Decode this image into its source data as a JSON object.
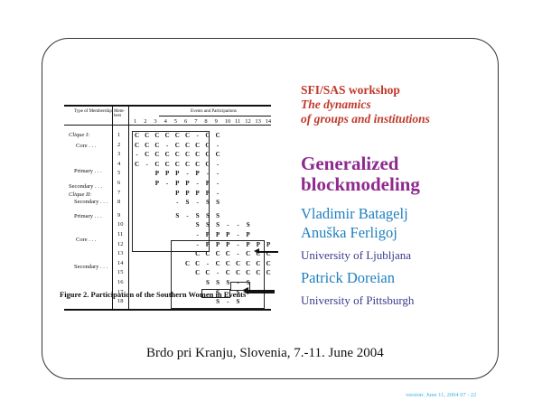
{
  "slide": {
    "workshop": "SFI/SAS workshop",
    "subtitle_line1": "The dynamics",
    "subtitle_line2": "of groups and institutions",
    "title_line1": "Generalized",
    "title_line2": "blockmodeling",
    "authors": [
      "Vladimir Batagelj",
      "Anuška Ferligoj"
    ],
    "affiliation1": "University of Ljubljana",
    "author3": "Patrick Doreian",
    "affiliation2": "University of Pittsburgh",
    "venue": "Brdo pri Kranju, Slovenia, 7.-11. June 2004",
    "version": "version: June 11, 2004     07 : 22"
  },
  "figure": {
    "caption": "Figure 2.  Participation of the Southern Women in Events",
    "col_header_type": "Type of Membership",
    "col_header_members": "Mem- bers",
    "col_header_events": "Events and Participations",
    "event_numbers": [
      "1",
      "2",
      "3",
      "4",
      "5",
      "6",
      "7",
      "8",
      "9",
      "10",
      "11",
      "12",
      "13",
      "14"
    ],
    "groups": [
      {
        "label": "Clique I:",
        "italic": true
      },
      {
        "label": "Core",
        "italic": false
      },
      {
        "label": "Primary",
        "italic": false
      },
      {
        "label": "Secondary",
        "italic": false
      },
      {
        "label": "Clique II:",
        "italic": true
      },
      {
        "label": "Secondary",
        "italic": false
      },
      {
        "label": "Primary",
        "italic": false
      },
      {
        "label": "Core",
        "italic": false
      },
      {
        "label": "Secondary",
        "italic": false
      }
    ],
    "members": [
      "1",
      "2",
      "3",
      "4",
      "5",
      "6",
      "7",
      "8",
      "9",
      "10",
      "11",
      "12",
      "13",
      "14",
      "15",
      "16",
      "17",
      "18"
    ],
    "matrix": [
      [
        "C",
        "C",
        "C",
        "C",
        "C",
        "C",
        "-",
        "C",
        "C",
        "",
        "",
        "",
        "",
        ""
      ],
      [
        "C",
        "C",
        "C",
        "-",
        "C",
        "C",
        "C",
        "C",
        "-",
        "",
        "",
        "",
        "",
        ""
      ],
      [
        "-",
        "C",
        "C",
        "C",
        "C",
        "C",
        "C",
        "C",
        "C",
        "",
        "",
        "",
        "",
        ""
      ],
      [
        "C",
        "-",
        "C",
        "C",
        "C",
        "C",
        "C",
        "C",
        "-",
        "",
        "",
        "",
        "",
        ""
      ],
      [
        "",
        "",
        "P",
        "P",
        "P",
        "-",
        "P",
        "-",
        "-",
        "",
        "",
        "",
        "",
        ""
      ],
      [
        "",
        "",
        "P",
        "-",
        "P",
        "P",
        "-",
        "P",
        "-",
        "",
        "",
        "",
        "",
        ""
      ],
      [
        "",
        "",
        "",
        "",
        "P",
        "P",
        "P",
        "P",
        "-",
        "",
        "",
        "",
        "",
        ""
      ],
      [
        "",
        "",
        "",
        "",
        "-",
        "S",
        "-",
        "S",
        "S",
        "",
        "",
        "",
        "",
        ""
      ],
      [
        "",
        "",
        "",
        "",
        "S",
        "-",
        "S",
        "S",
        "S",
        "",
        "",
        "",
        "",
        ""
      ],
      [
        "",
        "",
        "",
        "",
        "",
        "",
        "S",
        "S",
        "S",
        "-",
        "-",
        "S",
        "",
        ""
      ],
      [
        "",
        "",
        "",
        "",
        "",
        "",
        "-",
        "P",
        "P",
        "P",
        "-",
        "P",
        "",
        ""
      ],
      [
        "",
        "",
        "",
        "",
        "",
        "",
        "-",
        "P",
        "P",
        "P",
        "-",
        "P",
        "P",
        "P"
      ],
      [
        "",
        "",
        "",
        "",
        "",
        "",
        "C",
        "C",
        "C",
        "C",
        "-",
        "C",
        "C",
        "C"
      ],
      [
        "",
        "",
        "",
        "",
        "",
        "C",
        "C",
        "-",
        "C",
        "C",
        "C",
        "C",
        "C",
        "C"
      ],
      [
        "",
        "",
        "",
        "",
        "",
        "",
        "C",
        "C",
        "-",
        "C",
        "C",
        "C",
        "C",
        "C"
      ],
      [
        "",
        "",
        "",
        "",
        "",
        "",
        "",
        "S",
        "S",
        "S",
        "-",
        "S",
        "",
        ""
      ],
      [
        "",
        "",
        "",
        "",
        "",
        "",
        "",
        "",
        "S",
        "-",
        "S",
        "",
        "",
        ""
      ],
      [
        "",
        "",
        "",
        "",
        "",
        "",
        "",
        "",
        "S",
        "-",
        "S",
        "",
        "",
        ""
      ]
    ]
  }
}
